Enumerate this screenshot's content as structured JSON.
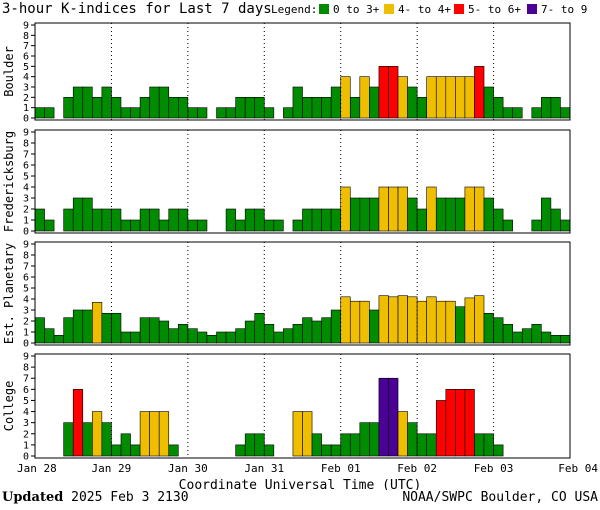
{
  "header": {
    "title": "3-hour K-indices for Last 7 days",
    "legend_label": "Legend:"
  },
  "footer": {
    "updated_label": "Updated",
    "updated_value": "2025 Feb  3 2130",
    "credit": "NOAA/SWPC Boulder, CO USA"
  },
  "chart_data": {
    "type": "bar",
    "title": "3-hour K-indices for Last 7 days",
    "xlabel": "Coordinate Universal Time (UTC)",
    "x_ticks": [
      "Jan 28",
      "Jan 29",
      "Jan 30",
      "Jan 31",
      "Feb 01",
      "Feb 02",
      "Feb 03",
      "Feb 04"
    ],
    "ylim": [
      0,
      9
    ],
    "y_ticks": [
      "0",
      "1",
      "2",
      "3",
      "4",
      "5",
      "6",
      "7",
      "8",
      "9"
    ],
    "grid": true,
    "legend_position": "top",
    "legend": [
      {
        "label": "0 to 3+",
        "color": "#008c00"
      },
      {
        "label": "4- to 4+",
        "color": "#f0be00"
      },
      {
        "label": "5- to 6+",
        "color": "#ff0000"
      },
      {
        "label": "7- to 9",
        "color": "#4b0096"
      }
    ],
    "panels": [
      {
        "name": "Boulder",
        "values": [
          1,
          1,
          0,
          2,
          3,
          3,
          2,
          3,
          2,
          1,
          1,
          2,
          3,
          3,
          2,
          2,
          1,
          1,
          0,
          1,
          1,
          2,
          2,
          2,
          1,
          0,
          1,
          3,
          2,
          2,
          2,
          3,
          4,
          2,
          4,
          3,
          5,
          5,
          4,
          3,
          2,
          4,
          4,
          4,
          4,
          4,
          5,
          3,
          2,
          1,
          1,
          0,
          1,
          2,
          2,
          1,
          0
        ]
      },
      {
        "name": "Fredericksburg",
        "values": [
          2,
          1,
          0,
          2,
          3,
          3,
          2,
          2,
          2,
          1,
          1,
          2,
          2,
          1,
          2,
          2,
          1,
          1,
          0,
          0,
          2,
          1,
          2,
          2,
          1,
          1,
          0,
          1,
          2,
          2,
          2,
          2,
          4,
          3,
          3,
          3,
          4,
          4,
          4,
          3,
          2,
          4,
          3,
          3,
          3,
          4,
          4,
          3,
          2,
          1,
          0,
          0,
          1,
          3,
          2,
          1,
          0
        ]
      },
      {
        "name": "Est. Planetary",
        "values": [
          2.3,
          1.3,
          0.7,
          2.3,
          3,
          3,
          3.7,
          2.7,
          2.7,
          1,
          1,
          2.3,
          2.3,
          2,
          1.3,
          1.7,
          1.3,
          1,
          0.7,
          1,
          1,
          1.3,
          2,
          2.7,
          1.7,
          1,
          1.3,
          1.7,
          2.3,
          2,
          2.3,
          3,
          4.2,
          3.8,
          3.8,
          3,
          4.3,
          4.2,
          4.3,
          4.2,
          3.8,
          4.2,
          3.8,
          3.8,
          3.3,
          4.1,
          4.3,
          2.7,
          2.3,
          1.7,
          1,
          1.3,
          1.7,
          1,
          0.7,
          0.7,
          0.3
        ]
      },
      {
        "name": "College",
        "values": [
          0,
          0,
          0,
          3,
          6,
          3,
          4,
          3,
          1,
          2,
          1,
          4,
          4,
          4,
          1,
          0,
          0,
          0,
          0,
          0,
          0,
          1,
          2,
          2,
          1,
          0,
          0,
          4,
          4,
          2,
          1,
          1,
          2,
          2,
          3,
          3,
          7,
          7,
          4,
          3,
          2,
          2,
          5,
          6,
          6,
          6,
          2,
          2,
          1,
          0,
          0,
          0,
          0,
          0,
          0,
          0,
          0
        ]
      }
    ]
  }
}
